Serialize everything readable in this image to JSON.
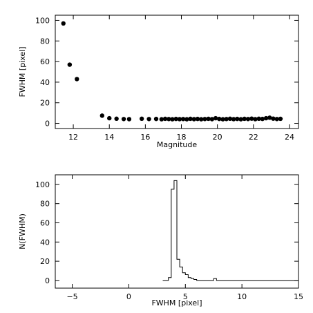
{
  "chart_data": [
    {
      "type": "scatter",
      "title": "",
      "xlabel": "Magnitude",
      "ylabel": "FWHM [pixel]",
      "xlim": [
        11,
        24.5
      ],
      "ylim": [
        -5,
        105
      ],
      "xticks": [
        12,
        14,
        16,
        18,
        20,
        22,
        24
      ],
      "yticks": [
        0,
        20,
        40,
        60,
        80,
        100
      ],
      "marker_color": "#000000",
      "points": [
        [
          11.45,
          97
        ],
        [
          11.8,
          57
        ],
        [
          12.2,
          43
        ],
        [
          13.6,
          7.5
        ],
        [
          14.0,
          5
        ],
        [
          14.4,
          4.5
        ],
        [
          14.8,
          4.2
        ],
        [
          15.1,
          4.1
        ],
        [
          15.8,
          4.5
        ],
        [
          16.2,
          4.2
        ],
        [
          16.6,
          4.3
        ],
        [
          16.9,
          4.0
        ],
        [
          17.1,
          4.4
        ],
        [
          17.3,
          4.2
        ],
        [
          17.5,
          4.0
        ],
        [
          17.7,
          4.3
        ],
        [
          17.9,
          4.1
        ],
        [
          18.1,
          4.2
        ],
        [
          18.3,
          4.0
        ],
        [
          18.5,
          4.4
        ],
        [
          18.7,
          4.1
        ],
        [
          18.9,
          4.3
        ],
        [
          19.1,
          4.0
        ],
        [
          19.3,
          4.2
        ],
        [
          19.5,
          4.4
        ],
        [
          19.7,
          4.1
        ],
        [
          19.9,
          5.0
        ],
        [
          20.1,
          4.3
        ],
        [
          20.3,
          4.0
        ],
        [
          20.5,
          4.2
        ],
        [
          20.7,
          4.5
        ],
        [
          20.9,
          4.1
        ],
        [
          21.1,
          4.3
        ],
        [
          21.3,
          4.0
        ],
        [
          21.5,
          4.4
        ],
        [
          21.7,
          4.2
        ],
        [
          21.9,
          4.6
        ],
        [
          22.1,
          4.1
        ],
        [
          22.3,
          4.5
        ],
        [
          22.5,
          4.3
        ],
        [
          22.7,
          5.0
        ],
        [
          22.9,
          5.5
        ],
        [
          23.1,
          4.6
        ],
        [
          23.3,
          4.2
        ],
        [
          23.5,
          4.4
        ]
      ]
    },
    {
      "type": "histogram",
      "title": "",
      "xlabel": "FWHM [pixel]",
      "ylabel": "N(FWHM)",
      "xlim": [
        -6.5,
        15
      ],
      "ylim": [
        -8,
        110
      ],
      "xticks": [
        -5,
        0,
        5,
        10,
        15
      ],
      "yticks": [
        0,
        20,
        40,
        60,
        80,
        100
      ],
      "line_color": "#000000",
      "x": [
        3.0,
        3.5,
        3.75,
        4.0,
        4.25,
        4.5,
        4.75,
        5.0,
        5.25,
        5.5,
        5.75,
        6.0,
        7.25,
        7.5,
        7.75,
        15.0
      ],
      "values": [
        0,
        3,
        95,
        104,
        22,
        14,
        8,
        6,
        3,
        2,
        1,
        0,
        0,
        2,
        0
      ]
    }
  ]
}
